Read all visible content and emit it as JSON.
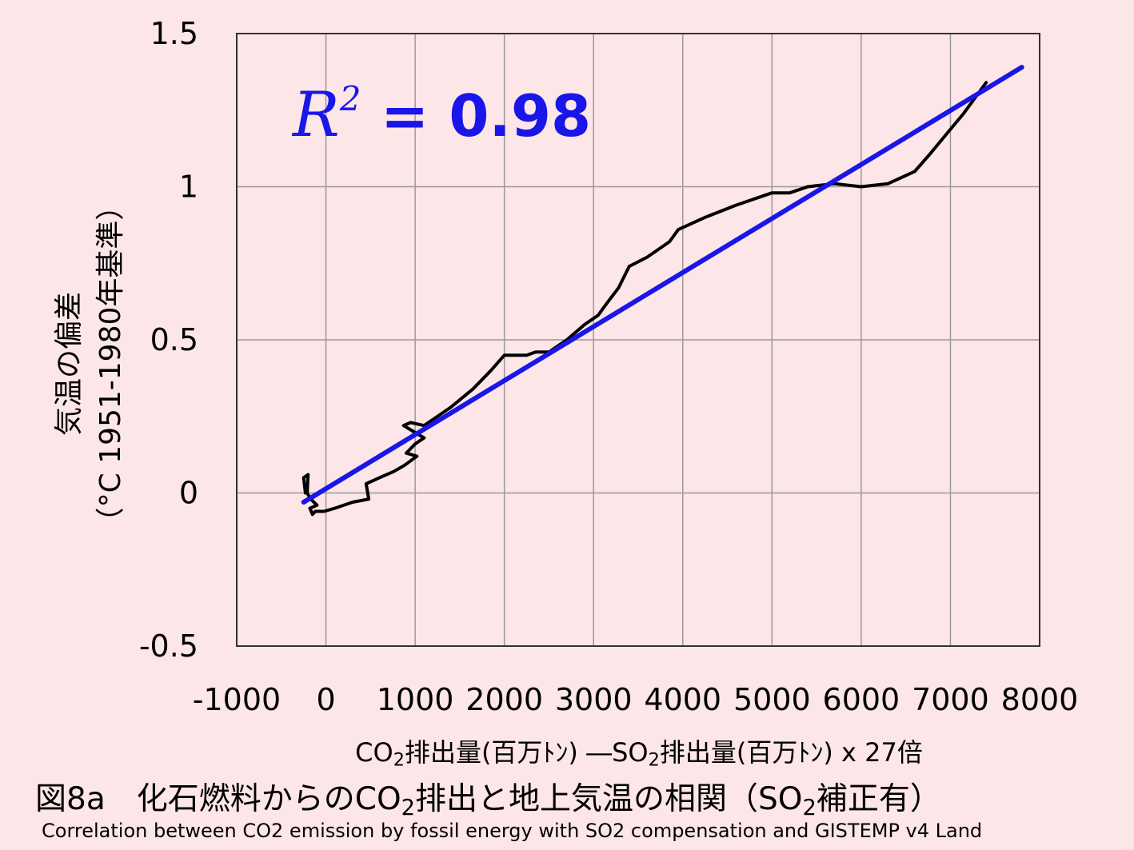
{
  "chart_data": {
    "type": "line",
    "annotation": {
      "symbol": "R",
      "exponent": "2",
      "text": "= 0.98"
    },
    "xlim": [
      -1000,
      8000
    ],
    "ylim": [
      -0.5,
      1.5
    ],
    "x_ticks": [
      "-1000",
      "0",
      "1000",
      "2000",
      "3000",
      "4000",
      "5000",
      "6000",
      "7000",
      "8000"
    ],
    "y_ticks": [
      "1.5",
      "1",
      "0.5",
      "0",
      "-0.5"
    ],
    "grid": true,
    "ylabel_line1": "気温の偏差",
    "ylabel_line2": "（°C  1951-1980年基準）",
    "xlabel": {
      "part1": "CO",
      "sub1": "2",
      "part2": "排出量(百万ﾄﾝ)  ―SO",
      "sub2": "2",
      "part3": "排出量(百万ﾄﾝ) x 27倍"
    },
    "series": [
      {
        "color": "#000000",
        "points": [
          [
            -230,
            0.0
          ],
          [
            -250,
            0.05
          ],
          [
            -200,
            0.06
          ],
          [
            -210,
            0.0
          ],
          [
            -170,
            -0.02
          ],
          [
            -100,
            -0.04
          ],
          [
            -180,
            -0.05
          ],
          [
            -150,
            -0.07
          ],
          [
            -120,
            -0.06
          ],
          [
            -20,
            -0.06
          ],
          [
            100,
            -0.05
          ],
          [
            300,
            -0.03
          ],
          [
            480,
            -0.02
          ],
          [
            450,
            0.03
          ],
          [
            600,
            0.05
          ],
          [
            760,
            0.07
          ],
          [
            880,
            0.09
          ],
          [
            1020,
            0.12
          ],
          [
            900,
            0.13
          ],
          [
            1000,
            0.16
          ],
          [
            1100,
            0.18
          ],
          [
            870,
            0.22
          ],
          [
            950,
            0.23
          ],
          [
            1100,
            0.22
          ],
          [
            1200,
            0.24
          ],
          [
            1300,
            0.26
          ],
          [
            1400,
            0.28
          ],
          [
            1650,
            0.34
          ],
          [
            1850,
            0.4
          ],
          [
            2000,
            0.45
          ],
          [
            2250,
            0.45
          ],
          [
            2350,
            0.46
          ],
          [
            2500,
            0.46
          ],
          [
            2700,
            0.5
          ],
          [
            2900,
            0.55
          ],
          [
            3050,
            0.58
          ],
          [
            3150,
            0.62
          ],
          [
            3280,
            0.67
          ],
          [
            3400,
            0.74
          ],
          [
            3600,
            0.77
          ],
          [
            3850,
            0.82
          ],
          [
            3950,
            0.86
          ],
          [
            4250,
            0.9
          ],
          [
            4600,
            0.94
          ],
          [
            5000,
            0.98
          ],
          [
            5200,
            0.98
          ],
          [
            5400,
            1.0
          ],
          [
            5700,
            1.01
          ],
          [
            6000,
            1.0
          ],
          [
            6300,
            1.01
          ],
          [
            6600,
            1.05
          ],
          [
            6780,
            1.11
          ],
          [
            6950,
            1.17
          ],
          [
            7150,
            1.24
          ],
          [
            7400,
            1.34
          ]
        ]
      },
      {
        "color": "#1a16e8",
        "points": [
          [
            -250,
            -0.03
          ],
          [
            7800,
            1.39
          ]
        ]
      }
    ]
  },
  "caption": {
    "title_a": "図8a　化石燃料からのCO",
    "title_sub": "2",
    "title_b": "排出と地上気温の相関（SO",
    "title_sub2": "2",
    "title_c": "補正有）",
    "subtitle": "Correlation between CO2 emission by fossil energy with SO2 compensation and GISTEMP v4 Land"
  }
}
